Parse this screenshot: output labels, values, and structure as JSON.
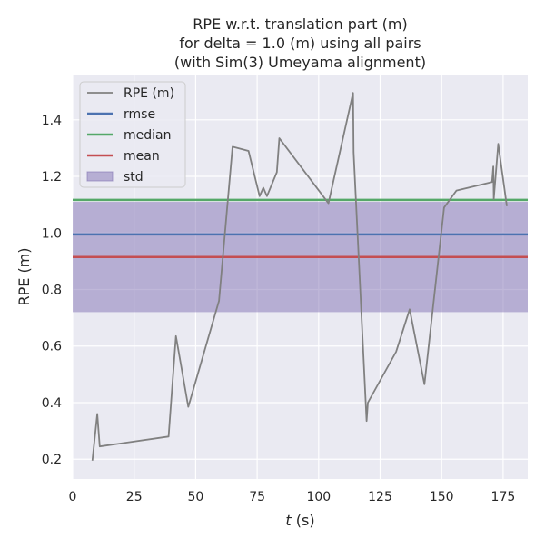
{
  "chart_data": {
    "type": "line",
    "title": [
      "RPE w.r.t. translation part (m)",
      "for delta = 1.0 (m) using all pairs",
      "(with Sim(3) Umeyama alignment)"
    ],
    "xlabel": "t (s)",
    "xlabel_italic": "t",
    "xlabel_unit": " (s)",
    "ylabel": "RPE (m)",
    "xlim": [
      0,
      185
    ],
    "ylim": [
      0.13,
      1.56
    ],
    "xticks": [
      0,
      25,
      50,
      75,
      100,
      125,
      150,
      175
    ],
    "yticks": [
      0.2,
      0.4,
      0.6,
      0.8,
      1.0,
      1.2,
      1.4
    ],
    "ytick_labels": [
      "0.2",
      "0.4",
      "0.6",
      "0.8",
      "1.0",
      "1.2",
      "1.4"
    ],
    "grid": true,
    "legend_placement": "upper left",
    "series": [
      {
        "name": "RPE (m)",
        "color": "#808080",
        "x": [
          8,
          10,
          11,
          39,
          42,
          47,
          59.5,
          65,
          71.5,
          76,
          77.5,
          79,
          83,
          84,
          104,
          114,
          114.2,
          119.5,
          120,
          131.5,
          137,
          143,
          151,
          156,
          170.5,
          171,
          171.2,
          173,
          176.5
        ],
        "y": [
          0.195,
          0.36,
          0.245,
          0.28,
          0.635,
          0.385,
          0.76,
          1.305,
          1.29,
          1.13,
          1.16,
          1.13,
          1.215,
          1.335,
          1.105,
          1.495,
          1.285,
          0.335,
          0.4,
          0.58,
          0.73,
          0.465,
          1.09,
          1.15,
          1.18,
          1.235,
          1.12,
          1.315,
          1.095
        ]
      }
    ],
    "stats": [
      {
        "name": "rmse",
        "value": 0.995,
        "color": "#4c72b0"
      },
      {
        "name": "median",
        "value": 1.117,
        "color": "#55a868"
      },
      {
        "name": "mean",
        "value": 0.915,
        "color": "#c44e52"
      }
    ],
    "std_band": {
      "name": "std",
      "low": 0.72,
      "high": 1.11,
      "color": "#8172b3"
    }
  }
}
